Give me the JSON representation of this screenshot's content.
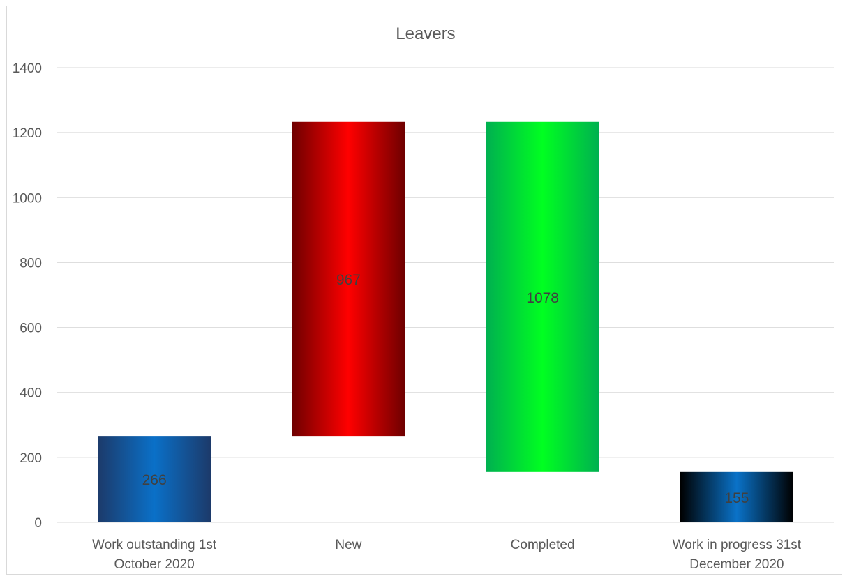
{
  "chart_data": {
    "type": "bar",
    "subtype": "waterfall",
    "title": "Leavers",
    "xlabel": "",
    "ylabel": "",
    "ylim": [
      0,
      1400
    ],
    "yticks": [
      0,
      200,
      400,
      600,
      800,
      1000,
      1200,
      1400
    ],
    "grid": true,
    "legend": "none",
    "categories": [
      [
        "Work outstanding 1st",
        "October 2020"
      ],
      [
        "New"
      ],
      [
        "Completed"
      ],
      [
        "Work in progress 31st",
        "December 2020"
      ]
    ],
    "values": [
      266,
      967,
      1078,
      155
    ],
    "bars": [
      {
        "base": 0,
        "top": 266,
        "label": "266",
        "fill": "blue1"
      },
      {
        "base": 266,
        "top": 1233,
        "label": "967",
        "fill": "red"
      },
      {
        "base": 155,
        "top": 1233,
        "label": "1078",
        "fill": "green"
      },
      {
        "base": 0,
        "top": 155,
        "label": "155",
        "fill": "blue2"
      }
    ],
    "colors": {
      "blue": "#0070c0",
      "red": "#ff0000",
      "green": "#00ff21",
      "grid": "#d9d9d9",
      "text": "#595959"
    }
  }
}
